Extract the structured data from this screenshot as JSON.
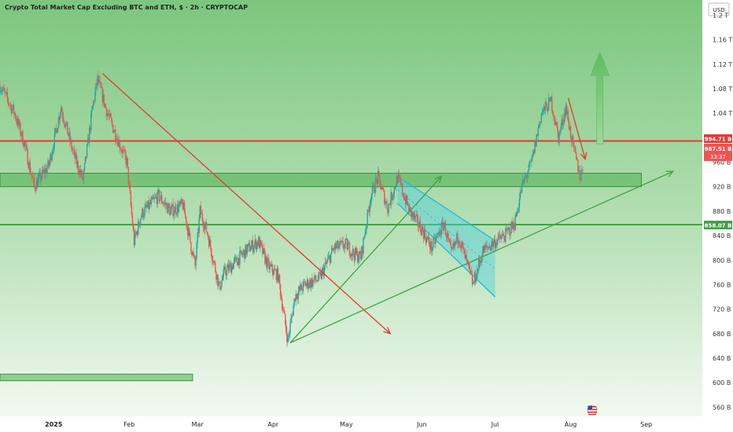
{
  "header": {
    "title": "Crypto Total Market Cap Excluding BTC and ETH, $ · 2h · CRYPTOCAP",
    "currency_button": "USD"
  },
  "price_tags": {
    "red_level": "994.71 B",
    "current_price": "987.51 B",
    "countdown": "33:37",
    "green_level": "858.07 B"
  },
  "chart_data": {
    "type": "candlestick",
    "title": "Crypto Total Market Cap Excluding BTC and ETH, $ · 2h · CRYPTOCAP",
    "x_ticks": [
      "2025",
      "Feb",
      "Mar",
      "Apr",
      "May",
      "Jun",
      "Jul",
      "Aug",
      "Sep"
    ],
    "x_dates": [
      "2025-01-01",
      "2025-02-01",
      "2025-03-01",
      "2025-04-01",
      "2025-05-01",
      "2025-06-01",
      "2025-07-01",
      "2025-08-01",
      "2025-09-01"
    ],
    "y_ticks": [
      "560 B",
      "600 B",
      "640 B",
      "680 B",
      "720 B",
      "760 B",
      "800 B",
      "840 B",
      "880 B",
      "920 B",
      "960 B",
      "1.04 T",
      "1.08 T",
      "1.12 T",
      "1.16 T",
      "1.2 T"
    ],
    "y_unit": "billion USD",
    "ylim": [
      545,
      1225
    ],
    "xlim": [
      "2024-12-10",
      "2025-09-24"
    ],
    "series_path": [
      [
        "2024-12-10",
        1085
      ],
      [
        "2024-12-16",
        1040
      ],
      [
        "2024-12-20",
        990
      ],
      [
        "2024-12-24",
        920
      ],
      [
        "2024-12-30",
        955
      ],
      [
        "2025-01-04",
        1050
      ],
      [
        "2025-01-09",
        975
      ],
      [
        "2025-01-13",
        930
      ],
      [
        "2025-01-17",
        1050
      ],
      [
        "2025-01-19",
        1095
      ],
      [
        "2025-01-23",
        1040
      ],
      [
        "2025-01-27",
        1000
      ],
      [
        "2025-01-31",
        960
      ],
      [
        "2025-02-03",
        830
      ],
      [
        "2025-02-06",
        875
      ],
      [
        "2025-02-13",
        905
      ],
      [
        "2025-02-18",
        880
      ],
      [
        "2025-02-23",
        890
      ],
      [
        "2025-02-28",
        790
      ],
      [
        "2025-03-02",
        880
      ],
      [
        "2025-03-05",
        845
      ],
      [
        "2025-03-10",
        755
      ],
      [
        "2025-03-12",
        780
      ],
      [
        "2025-03-16",
        795
      ],
      [
        "2025-03-22",
        820
      ],
      [
        "2025-03-26",
        830
      ],
      [
        "2025-03-30",
        790
      ],
      [
        "2025-04-03",
        775
      ],
      [
        "2025-04-07",
        668
      ],
      [
        "2025-04-10",
        742
      ],
      [
        "2025-04-14",
        760
      ],
      [
        "2025-04-20",
        770
      ],
      [
        "2025-04-26",
        820
      ],
      [
        "2025-05-01",
        825
      ],
      [
        "2025-05-04",
        810
      ],
      [
        "2025-05-07",
        805
      ],
      [
        "2025-05-11",
        905
      ],
      [
        "2025-05-14",
        935
      ],
      [
        "2025-05-18",
        885
      ],
      [
        "2025-05-22",
        935
      ],
      [
        "2025-05-27",
        880
      ],
      [
        "2025-06-01",
        850
      ],
      [
        "2025-06-05",
        820
      ],
      [
        "2025-06-10",
        860
      ],
      [
        "2025-06-13",
        810
      ],
      [
        "2025-06-16",
        840
      ],
      [
        "2025-06-22",
        760
      ],
      [
        "2025-06-26",
        815
      ],
      [
        "2025-07-01",
        830
      ],
      [
        "2025-07-05",
        840
      ],
      [
        "2025-07-09",
        860
      ],
      [
        "2025-07-12",
        920
      ],
      [
        "2025-07-16",
        960
      ],
      [
        "2025-07-20",
        1040
      ],
      [
        "2025-07-24",
        1060
      ],
      [
        "2025-07-27",
        1000
      ],
      [
        "2025-07-30",
        1050
      ],
      [
        "2025-08-02",
        985
      ],
      [
        "2025-08-05",
        935
      ],
      [
        "2025-08-06",
        955
      ]
    ],
    "horizontal_levels": [
      {
        "value": 994.71,
        "color": "#e53935"
      },
      {
        "value": 858.07,
        "color": "#43a047"
      }
    ],
    "zones": [
      {
        "from": "2024-12-10",
        "to": "2025-08-30",
        "low": 920,
        "high": 942
      },
      {
        "from": "2024-12-10",
        "to": "2025-02-27",
        "low": 603,
        "high": 614
      }
    ],
    "trendlines": [
      {
        "from": [
          "2025-01-21",
          1105
        ],
        "to": [
          "2025-05-19",
          680
        ],
        "color": "#e53935",
        "arrow": true
      },
      {
        "from": [
          "2025-04-08",
          665
        ],
        "to": [
          "2025-09-12",
          945
        ],
        "color": "#43a047",
        "arrow": true
      },
      {
        "from": [
          "2025-04-08",
          665
        ],
        "to": [
          "2025-06-09",
          937
        ],
        "color": "#43a047",
        "arrow": true
      },
      {
        "from": [
          "2025-07-31",
          1065
        ],
        "to": [
          "2025-08-07",
          965
        ],
        "color": "#e53935",
        "arrow": true
      }
    ],
    "channel": {
      "upper": [
        [
          "2025-05-22",
          937
        ],
        [
          "2025-07-01",
          832
        ]
      ],
      "lower": [
        [
          "2025-05-22",
          893
        ],
        [
          "2025-07-01",
          740
        ]
      ],
      "color": "#29b6d6"
    },
    "up_arrow": {
      "date": "2025-08-13",
      "from": 990,
      "to": 1140
    },
    "grid": false,
    "legend": "none"
  }
}
